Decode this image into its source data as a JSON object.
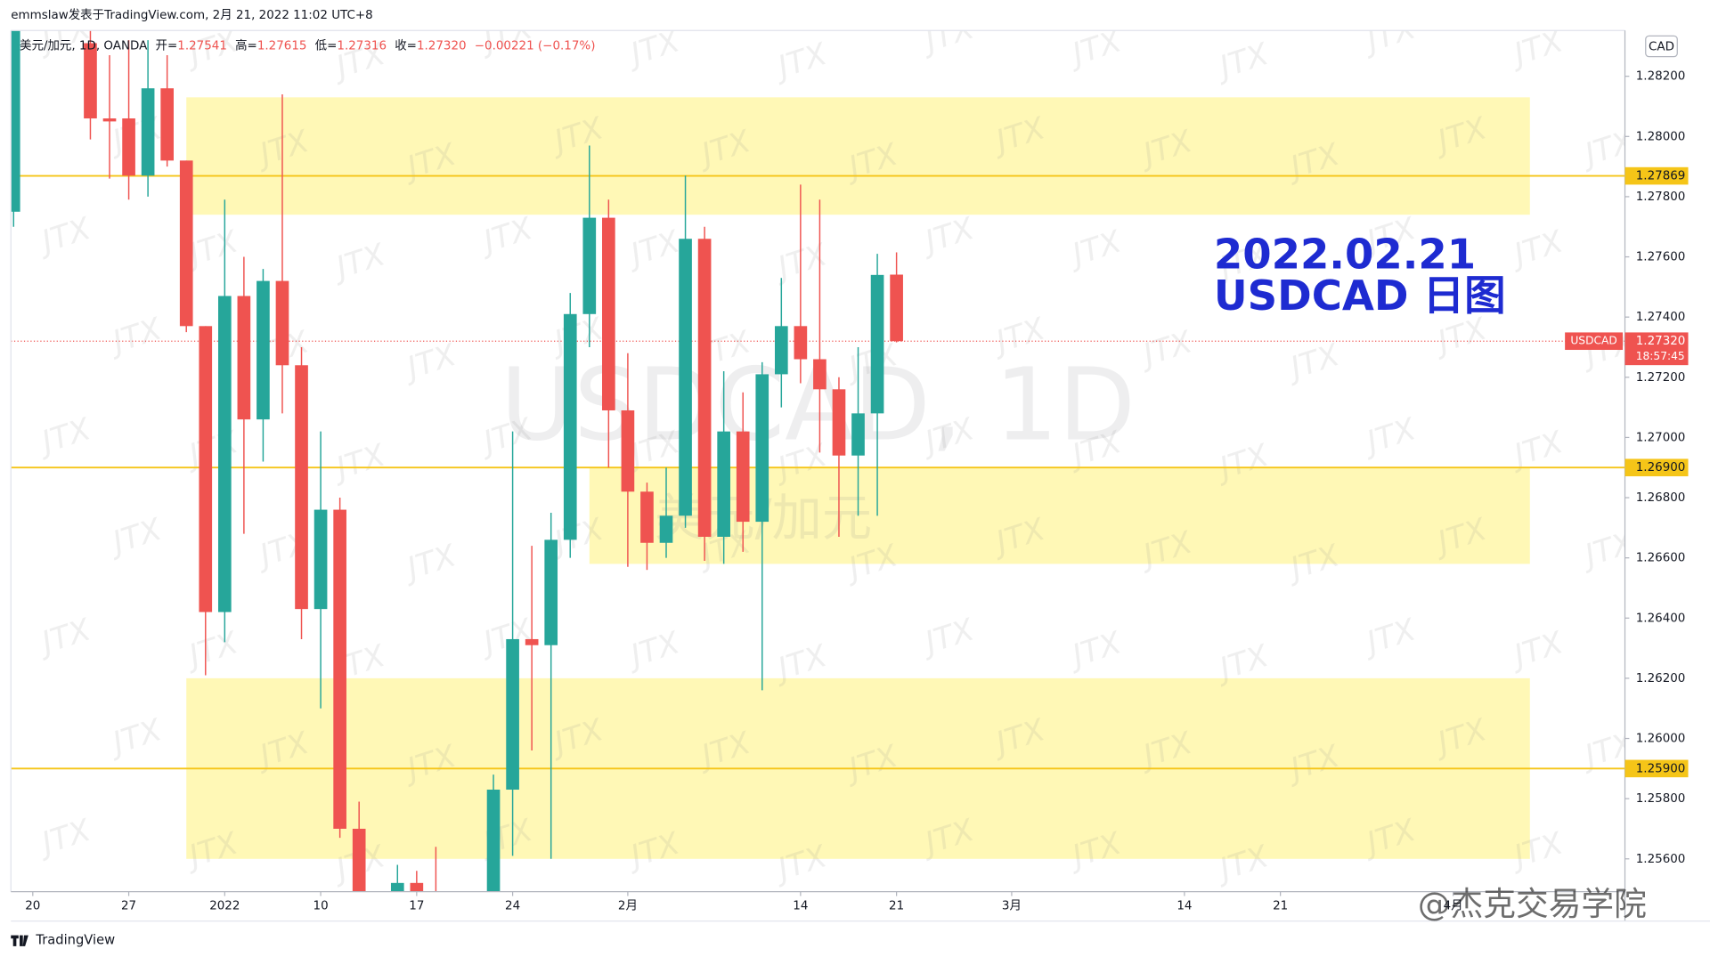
{
  "header": {
    "byline": "emmslaw发表于TradingView.com, 2月 21, 2022 11:02 UTC+8",
    "symbol": "美元/加元, 1D, OANDA",
    "ohlc": [
      {
        "label": "开=",
        "value": "1.27541"
      },
      {
        "label": "高=",
        "value": "1.27615"
      },
      {
        "label": "低=",
        "value": "1.27316"
      },
      {
        "label": "收=",
        "value": "1.27320"
      }
    ],
    "change": "−0.00221 (−0.17%)",
    "currency": "CAD",
    "brand": "TradingView"
  },
  "watermarks": {
    "symbol": "USDCAD, 1D",
    "name": "美元/加元",
    "jtx": "JTX",
    "author": "@杰克交易学院"
  },
  "chart_data": {
    "type": "candlestick",
    "annotation": [
      "2022.02.21",
      "USDCAD 日图"
    ],
    "up_color": "#26a69a",
    "down_color": "#ef5350",
    "x": [
      -1,
      3,
      4,
      5,
      6,
      7,
      8,
      9,
      10,
      11,
      12,
      13,
      14,
      15,
      16,
      17,
      19,
      20,
      21,
      24,
      25,
      26,
      27,
      28,
      29,
      30,
      31,
      32,
      33,
      34,
      35,
      36,
      37,
      38,
      39,
      40,
      41,
      42,
      43,
      44,
      45
    ],
    "open": [
      1.2775,
      1.2831,
      1.2806,
      1.2806,
      1.2787,
      1.2816,
      1.2792,
      1.2737,
      1.2642,
      1.2747,
      1.2706,
      1.2752,
      1.2724,
      1.2643,
      1.2676,
      1.257,
      1.254,
      1.2552,
      1.2545,
      1.254,
      1.2583,
      1.2633,
      1.2631,
      1.2666,
      1.2741,
      1.2773,
      1.2709,
      1.2682,
      1.2665,
      1.2674,
      1.2766,
      1.2667,
      1.2702,
      1.2672,
      1.2721,
      1.2737,
      1.2726,
      1.2716,
      1.2694,
      1.2708,
      1.27541
    ],
    "high": [
      1.288,
      1.284,
      1.2827,
      1.2832,
      1.2832,
      1.2827,
      1.2792,
      1.2737,
      1.2779,
      1.276,
      1.2756,
      1.2814,
      1.273,
      1.2702,
      1.268,
      1.2579,
      1.2558,
      1.2556,
      1.2564,
      1.2588,
      1.2702,
      1.2664,
      1.2675,
      1.2748,
      1.2797,
      1.2779,
      1.2728,
      1.2685,
      1.269,
      1.2787,
      1.277,
      1.2722,
      1.2715,
      1.2725,
      1.2753,
      1.2784,
      1.2779,
      1.272,
      1.273,
      1.2761,
      1.27615
    ],
    "low": [
      1.277,
      1.2799,
      1.2786,
      1.2779,
      1.278,
      1.279,
      1.2735,
      1.2621,
      1.2632,
      1.2668,
      1.2692,
      1.2708,
      1.2633,
      1.261,
      1.2567,
      1.253,
      1.253,
      1.252,
      1.252,
      1.253,
      1.2561,
      1.2596,
      1.256,
      1.266,
      1.273,
      1.269,
      1.2657,
      1.2656,
      1.266,
      1.267,
      1.2659,
      1.2658,
      1.2662,
      1.2616,
      1.271,
      1.2718,
      1.2695,
      1.2667,
      1.2674,
      1.2674,
      1.27316
    ],
    "close": [
      1.286,
      1.2806,
      1.2805,
      1.2787,
      1.2816,
      1.2792,
      1.2737,
      1.2642,
      1.2747,
      1.2706,
      1.2752,
      1.2724,
      1.2643,
      1.2676,
      1.257,
      1.254,
      1.2552,
      1.254,
      1.2535,
      1.2583,
      1.2633,
      1.2631,
      1.2666,
      1.2741,
      1.2773,
      1.2709,
      1.2682,
      1.2665,
      1.2674,
      1.2766,
      1.2667,
      1.2702,
      1.2672,
      1.2721,
      1.2737,
      1.2726,
      1.2716,
      1.2694,
      1.2708,
      1.2754,
      1.2732
    ],
    "xlim": [
      -1.14,
      82.95
    ],
    "xticks": [
      {
        "value": 0,
        "label": "20"
      },
      {
        "value": 5,
        "label": "27"
      },
      {
        "value": 10,
        "label": "2022"
      },
      {
        "value": 15,
        "label": "10"
      },
      {
        "value": 20,
        "label": "17"
      },
      {
        "value": 25,
        "label": "24"
      },
      {
        "value": 31,
        "label": "2月"
      },
      {
        "value": 40,
        "label": "14"
      },
      {
        "value": 45,
        "label": "21"
      },
      {
        "value": 51,
        "label": "3月"
      },
      {
        "value": 60,
        "label": "14"
      },
      {
        "value": 65,
        "label": "21"
      },
      {
        "value": 74,
        "label": "4月"
      }
    ],
    "ylim": [
      1.25491,
      1.28352
    ],
    "yticks": [
      {
        "value": 1.256,
        "label": "1.25600"
      },
      {
        "value": 1.258,
        "label": "1.25800"
      },
      {
        "value": 1.26,
        "label": "1.26000"
      },
      {
        "value": 1.262,
        "label": "1.26200"
      },
      {
        "value": 1.264,
        "label": "1.26400"
      },
      {
        "value": 1.266,
        "label": "1.26600"
      },
      {
        "value": 1.268,
        "label": "1.26800"
      },
      {
        "value": 1.27,
        "label": "1.27000"
      },
      {
        "value": 1.272,
        "label": "1.27200"
      },
      {
        "value": 1.274,
        "label": "1.27400"
      },
      {
        "value": 1.276,
        "label": "1.27600"
      },
      {
        "value": 1.278,
        "label": "1.27800"
      },
      {
        "value": 1.28,
        "label": "1.28000"
      },
      {
        "value": 1.282,
        "label": "1.28200"
      }
    ],
    "zone_color": "#fff59d",
    "zones": [
      {
        "x": [
          8,
          78
        ],
        "y": [
          1.2774,
          1.2813
        ]
      },
      {
        "x": [
          29,
          78
        ],
        "y": [
          1.2658,
          1.269
        ]
      },
      {
        "x": [
          8,
          78
        ],
        "y": [
          1.256,
          1.262
        ]
      }
    ],
    "level_color": "#f5c518",
    "levels": [
      {
        "value": 1.27869,
        "label": "1.27869"
      },
      {
        "value": 1.269,
        "label": "1.26900"
      },
      {
        "value": 1.259,
        "label": "1.25900"
      }
    ],
    "price_line": {
      "symbol": "USDCAD",
      "price": {
        "value": 1.2732,
        "label": "1.27320"
      },
      "countdown": "18:57:45"
    }
  }
}
